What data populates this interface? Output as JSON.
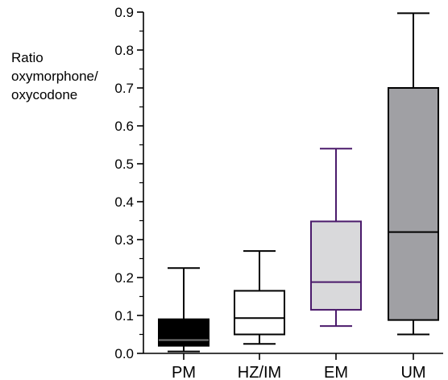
{
  "chart_data": {
    "type": "box",
    "ylabel_lines": [
      "Ratio",
      "oxymorphone/",
      "oxycodone"
    ],
    "ylim": [
      0,
      0.9
    ],
    "yticks": [
      "0.0",
      "0.1",
      "0.2",
      "0.3",
      "0.4",
      "0.5",
      "0.6",
      "0.7",
      "0.8",
      "0.9"
    ],
    "categories": [
      "PM",
      "HZ/IM",
      "EM",
      "UM"
    ],
    "boxes": [
      {
        "label": "PM",
        "min": 0.005,
        "q1": 0.02,
        "median": 0.035,
        "q3": 0.09,
        "max": 0.225,
        "fill": "#000000",
        "stroke": "#000000",
        "median_color": "#777777"
      },
      {
        "label": "HZ/IM",
        "min": 0.025,
        "q1": 0.05,
        "median": 0.093,
        "q3": 0.165,
        "max": 0.27,
        "fill": "#ffffff",
        "stroke": "#000000",
        "median_color": "#000000"
      },
      {
        "label": "EM",
        "min": 0.072,
        "q1": 0.115,
        "median": 0.188,
        "q3": 0.348,
        "max": 0.54,
        "fill": "#d9d9db",
        "stroke": "#4b1a6b",
        "median_color": "#4b1a6b"
      },
      {
        "label": "UM",
        "min": 0.05,
        "q1": 0.088,
        "median": 0.32,
        "q3": 0.7,
        "max": 0.897,
        "fill": "#a0a0a4",
        "stroke": "#000000",
        "median_color": "#000000"
      }
    ]
  }
}
